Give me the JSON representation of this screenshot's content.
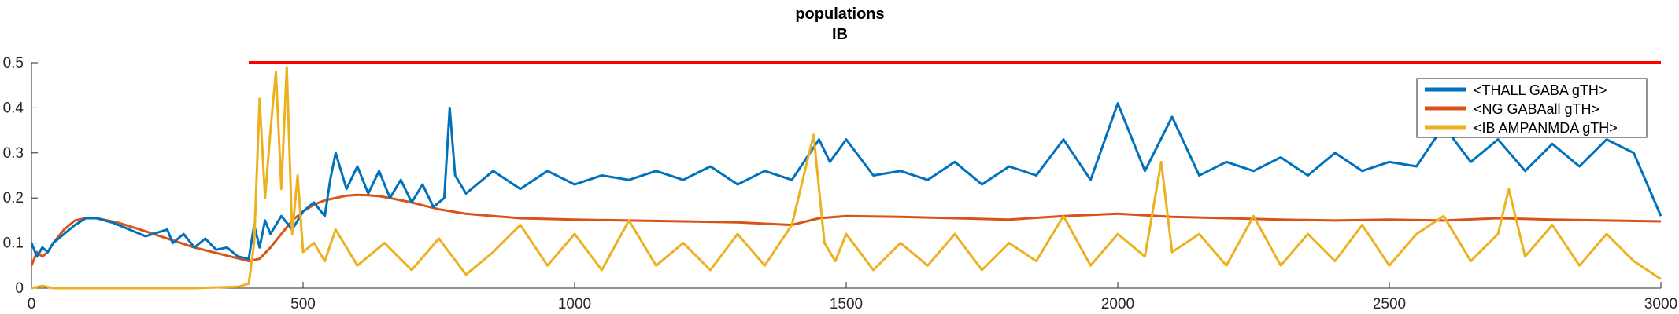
{
  "chart_data": {
    "type": "line",
    "title": "populations",
    "subtitle": "IB",
    "xlabel": "",
    "ylabel": "",
    "xlim": [
      0,
      3000
    ],
    "ylim": [
      0,
      0.5
    ],
    "xticks": [
      0,
      500,
      1000,
      1500,
      2000,
      2500,
      3000
    ],
    "xtick_labels": [
      "0",
      "500",
      "1000",
      "1500",
      "2000",
      "2500",
      "3000"
    ],
    "yticks": [
      0,
      0.1,
      0.2,
      0.3,
      0.4,
      0.5
    ],
    "ytick_labels": [
      "0",
      "0.1",
      "0.2",
      "0.3",
      "0.4",
      "0.5"
    ],
    "grid": false,
    "legend_position": "top-right",
    "series": [
      {
        "name": "<THALL GABA gTH>",
        "color": "#0072BD",
        "x": [
          0,
          10,
          20,
          30,
          40,
          60,
          80,
          100,
          120,
          150,
          180,
          210,
          250,
          260,
          280,
          300,
          320,
          340,
          360,
          380,
          400,
          410,
          420,
          430,
          440,
          460,
          480,
          500,
          520,
          540,
          550,
          560,
          580,
          600,
          620,
          640,
          660,
          680,
          700,
          720,
          740,
          760,
          770,
          780,
          800,
          850,
          900,
          950,
          1000,
          1050,
          1100,
          1150,
          1200,
          1250,
          1300,
          1350,
          1400,
          1450,
          1470,
          1500,
          1550,
          1600,
          1650,
          1700,
          1750,
          1800,
          1850,
          1900,
          1950,
          2000,
          2050,
          2100,
          2150,
          2200,
          2250,
          2300,
          2350,
          2400,
          2450,
          2500,
          2550,
          2600,
          2650,
          2700,
          2750,
          2800,
          2850,
          2900,
          2950,
          3000
        ],
        "values": [
          0.1,
          0.07,
          0.09,
          0.08,
          0.1,
          0.12,
          0.14,
          0.155,
          0.155,
          0.145,
          0.13,
          0.115,
          0.13,
          0.1,
          0.12,
          0.09,
          0.11,
          0.085,
          0.09,
          0.07,
          0.065,
          0.14,
          0.09,
          0.15,
          0.12,
          0.16,
          0.13,
          0.17,
          0.19,
          0.16,
          0.24,
          0.3,
          0.22,
          0.27,
          0.21,
          0.26,
          0.2,
          0.24,
          0.19,
          0.23,
          0.18,
          0.2,
          0.4,
          0.25,
          0.21,
          0.26,
          0.22,
          0.26,
          0.23,
          0.25,
          0.24,
          0.26,
          0.24,
          0.27,
          0.23,
          0.26,
          0.24,
          0.33,
          0.28,
          0.33,
          0.25,
          0.26,
          0.24,
          0.28,
          0.23,
          0.27,
          0.25,
          0.33,
          0.24,
          0.41,
          0.26,
          0.38,
          0.25,
          0.28,
          0.26,
          0.29,
          0.25,
          0.3,
          0.26,
          0.28,
          0.27,
          0.36,
          0.28,
          0.33,
          0.26,
          0.32,
          0.27,
          0.33,
          0.3,
          0.16
        ]
      },
      {
        "name": "<NG GABAall gTH>",
        "color": "#D95319",
        "x": [
          0,
          10,
          20,
          30,
          40,
          60,
          80,
          100,
          120,
          140,
          160,
          200,
          250,
          300,
          350,
          400,
          420,
          440,
          460,
          480,
          500,
          520,
          540,
          560,
          580,
          600,
          620,
          640,
          660,
          680,
          700,
          750,
          800,
          850,
          900,
          1000,
          1100,
          1200,
          1300,
          1400,
          1450,
          1500,
          1600,
          1700,
          1800,
          1900,
          2000,
          2100,
          2200,
          2300,
          2400,
          2500,
          2600,
          2700,
          2800,
          2900,
          3000
        ],
        "values": [
          0.05,
          0.08,
          0.07,
          0.08,
          0.1,
          0.13,
          0.15,
          0.155,
          0.155,
          0.15,
          0.145,
          0.13,
          0.11,
          0.09,
          0.075,
          0.06,
          0.065,
          0.09,
          0.12,
          0.15,
          0.17,
          0.185,
          0.195,
          0.2,
          0.205,
          0.207,
          0.206,
          0.204,
          0.2,
          0.195,
          0.19,
          0.175,
          0.165,
          0.16,
          0.155,
          0.152,
          0.15,
          0.148,
          0.146,
          0.14,
          0.155,
          0.16,
          0.158,
          0.155,
          0.152,
          0.16,
          0.165,
          0.158,
          0.155,
          0.152,
          0.15,
          0.152,
          0.15,
          0.155,
          0.152,
          0.15,
          0.148
        ]
      },
      {
        "name": "<IB AMPANMDA gTH>",
        "color": "#EDB120",
        "x": [
          0,
          20,
          40,
          60,
          100,
          200,
          300,
          350,
          380,
          400,
          410,
          420,
          430,
          440,
          450,
          460,
          470,
          480,
          490,
          500,
          520,
          540,
          560,
          600,
          650,
          700,
          750,
          800,
          850,
          900,
          950,
          1000,
          1050,
          1100,
          1150,
          1200,
          1250,
          1300,
          1350,
          1400,
          1440,
          1460,
          1480,
          1500,
          1550,
          1600,
          1650,
          1700,
          1750,
          1800,
          1850,
          1900,
          1950,
          2000,
          2050,
          2080,
          2100,
          2150,
          2200,
          2250,
          2300,
          2350,
          2400,
          2450,
          2500,
          2550,
          2600,
          2650,
          2700,
          2720,
          2750,
          2800,
          2850,
          2900,
          2950,
          3000
        ],
        "values": [
          0,
          0.005,
          0,
          0,
          0,
          0,
          0,
          0.002,
          0.003,
          0.01,
          0.1,
          0.42,
          0.2,
          0.35,
          0.48,
          0.22,
          0.49,
          0.12,
          0.25,
          0.08,
          0.1,
          0.06,
          0.13,
          0.05,
          0.1,
          0.04,
          0.11,
          0.03,
          0.08,
          0.14,
          0.05,
          0.12,
          0.04,
          0.15,
          0.05,
          0.1,
          0.04,
          0.12,
          0.05,
          0.14,
          0.34,
          0.1,
          0.06,
          0.12,
          0.04,
          0.1,
          0.05,
          0.12,
          0.04,
          0.1,
          0.06,
          0.16,
          0.05,
          0.12,
          0.07,
          0.28,
          0.08,
          0.12,
          0.05,
          0.16,
          0.05,
          0.12,
          0.06,
          0.14,
          0.05,
          0.12,
          0.16,
          0.06,
          0.12,
          0.22,
          0.07,
          0.14,
          0.05,
          0.12,
          0.06,
          0.02
        ]
      },
      {
        "name": "",
        "color": "#FF0000",
        "x": [
          400,
          3000
        ],
        "values": [
          0.5,
          0.5
        ]
      }
    ]
  }
}
